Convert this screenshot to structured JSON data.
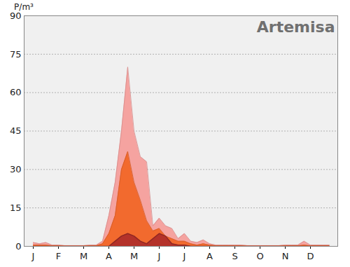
{
  "chart_data": {
    "type": "area",
    "title": "Artemisa",
    "y_label": "P/m³",
    "categories": [
      "J",
      null,
      null,
      null,
      "F",
      null,
      null,
      null,
      "M",
      null,
      null,
      null,
      "A",
      null,
      null,
      null,
      "M",
      null,
      null,
      null,
      "J",
      null,
      null,
      null,
      "J",
      null,
      null,
      null,
      "A",
      null,
      null,
      null,
      "S",
      null,
      null,
      null,
      "O",
      null,
      null,
      null,
      "N",
      null,
      null,
      null,
      "D",
      null,
      null,
      null
    ],
    "series": [
      {
        "color": "#f5a3a0",
        "values": [
          1.5,
          1,
          1.5,
          0.5,
          0.5,
          0.3,
          0.3,
          0.3,
          0.3,
          0.5,
          0.5,
          2,
          12,
          25,
          45,
          70,
          45,
          35,
          33,
          8,
          11,
          8,
          7,
          3,
          5,
          2,
          1.5,
          2.5,
          1,
          0.5,
          0.5,
          0.5,
          0.5,
          0.5,
          0.3,
          0.3,
          0.3,
          0.3,
          0.3,
          0.3,
          0.5,
          0.5,
          0.5,
          2,
          0.5,
          0.5,
          0.5,
          0.5
        ]
      },
      {
        "color": "#f26a2e",
        "values": [
          0.5,
          0.5,
          0.5,
          0.2,
          0.2,
          0.1,
          0.1,
          0.1,
          0.1,
          0.2,
          0.2,
          1,
          5,
          12,
          30,
          37,
          25,
          18,
          10,
          6,
          7,
          4,
          3,
          2,
          2,
          1,
          0.5,
          1,
          0.5,
          0.2,
          0.2,
          0.2,
          0.2,
          0.2,
          0.1,
          0.1,
          0.1,
          0.1,
          0.1,
          0.1,
          0.2,
          0.2,
          0.2,
          0.5,
          0.2,
          0.2,
          0.2,
          0.2
        ]
      },
      {
        "color": "#b4322a",
        "values": [
          0,
          0,
          0,
          0,
          0,
          0,
          0,
          0,
          0,
          0,
          0,
          0,
          0,
          2,
          4,
          5,
          4,
          2,
          1,
          3,
          5,
          4,
          1,
          0.5,
          0.5,
          0,
          0,
          0,
          0,
          0,
          0,
          0,
          0,
          0,
          0,
          0,
          0,
          0,
          0,
          0,
          0,
          0,
          0,
          0,
          0,
          0,
          0,
          0
        ]
      }
    ],
    "ylim": [
      0,
      90
    ],
    "yticks": [
      0,
      15,
      30,
      45,
      60,
      75,
      90
    ],
    "grid": true
  }
}
